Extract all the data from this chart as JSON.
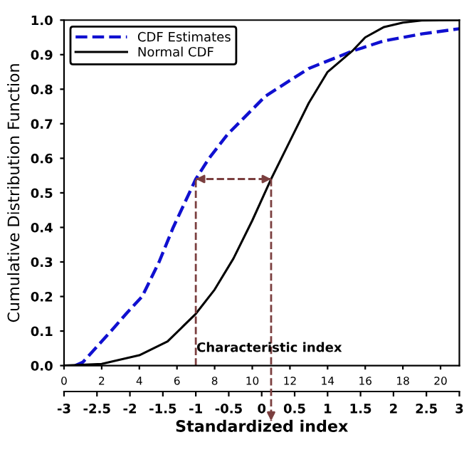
{
  "chart_data": {
    "type": "line",
    "ylabel": "Cumulative Distribution Function",
    "x2label": "Standardized index",
    "series": [
      {
        "name": "CDF Estimates",
        "color": "#1010d0",
        "line_style": "dashed",
        "x": [
          0.6,
          1,
          1.5,
          2.5,
          3.3,
          4.15,
          5.05,
          5.8,
          7,
          7.7,
          8.7,
          10.7,
          13,
          15.3,
          17,
          19,
          21
        ],
        "values": [
          0,
          0.01,
          0.04,
          0.1,
          0.15,
          0.2,
          0.3,
          0.4,
          0.54,
          0.6,
          0.67,
          0.78,
          0.86,
          0.91,
          0.94,
          0.96,
          0.975
        ]
      },
      {
        "name": "Normal CDF",
        "color": "#000000",
        "line_style": "solid",
        "x": [
          0,
          2,
          4,
          5.5,
          7,
          8,
          9,
          10,
          11,
          12,
          13,
          14,
          15.3,
          16,
          17,
          18,
          19,
          21
        ],
        "values": [
          0,
          0.005,
          0.03,
          0.07,
          0.15,
          0.22,
          0.31,
          0.42,
          0.54,
          0.65,
          0.76,
          0.85,
          0.91,
          0.95,
          0.98,
          0.993,
          0.999,
          1.0
        ]
      }
    ],
    "xlim": [
      0,
      21
    ],
    "xticks": [
      0,
      2,
      4,
      6,
      8,
      10,
      12,
      14,
      16,
      18,
      20
    ],
    "ylim": [
      0,
      1
    ],
    "yticks": [
      {
        "value": 0,
        "label": "0.0"
      },
      0.1,
      0.2,
      0.3,
      0.4,
      0.5,
      0.6,
      0.7,
      0.8,
      0.9,
      {
        "value": 1,
        "label": "1.0"
      }
    ],
    "x2lim": [
      -3,
      3
    ],
    "x2ticks": [
      -3,
      -2.5,
      -2,
      -1.5,
      -1,
      -0.5,
      0,
      0.5,
      1,
      1.5,
      2,
      2.5,
      3
    ],
    "ref_lines": [
      {
        "axis": "x",
        "value": 7,
        "color": "#7b3f3f",
        "line_style": "dashed"
      },
      {
        "axis": "x",
        "value": 11,
        "color": "#7b3f3f",
        "line_style": "dashed"
      },
      {
        "axis": "y",
        "value": 0.54,
        "color": "#7b3f3f",
        "line_style": "dashed"
      }
    ],
    "annotations": [
      "Characteristic index"
    ],
    "legend": "top left",
    "grid": false
  }
}
